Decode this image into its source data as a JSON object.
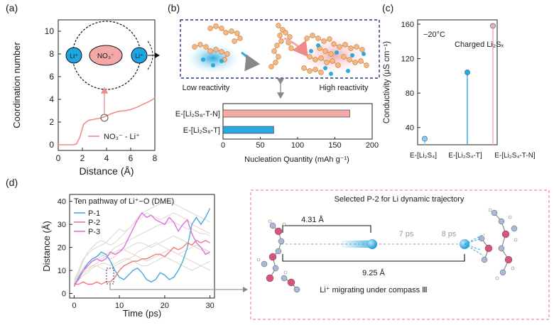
{
  "panels": {
    "a": "(a)",
    "b": "(b)",
    "c": "(c)",
    "d": "(d)"
  },
  "colors": {
    "red": "#f08a8a",
    "pink": "#f4a8a8",
    "blue": "#2aa8e0",
    "lightblue": "#8fc8ec",
    "magenta": "#e070e0",
    "grey": "#d8d2c8"
  },
  "chart_data": [
    {
      "id": "a",
      "type": "line",
      "title": "",
      "xlabel": "Distance (Å)",
      "ylabel": "Coordination number",
      "xlim": [
        0,
        8
      ],
      "ylim": [
        -0.5,
        11
      ],
      "xticks": [
        "0",
        "2",
        "4",
        "6",
        "8"
      ],
      "yticks": [
        "0",
        "2",
        "4",
        "6",
        "8",
        "10"
      ],
      "legend": "NO₃⁻ - Li⁺",
      "series": [
        {
          "name": "NO3- - Li+",
          "x": [
            0,
            1.2,
            1.5,
            1.8,
            2.1,
            2.5,
            3.0,
            3.5,
            3.9,
            4.3,
            5.0,
            5.5,
            6.0,
            6.5,
            7.0,
            7.5,
            8.0
          ],
          "y": [
            0,
            0,
            0.05,
            0.7,
            1.8,
            2.15,
            2.25,
            2.35,
            2.5,
            2.7,
            2.95,
            3.0,
            3.1,
            3.3,
            3.55,
            3.8,
            4.1
          ]
        }
      ],
      "annotations": {
        "cation_left": "Li⁺",
        "anion": "NO₃⁻",
        "cation_right": "Li⁺"
      }
    },
    {
      "id": "b",
      "type": "bar",
      "xlabel": "Nucleation Quantity (mAh g⁻¹)",
      "xlim": [
        0,
        200
      ],
      "xticks": [
        "0",
        "50",
        "100",
        "150",
        "200"
      ],
      "categories": [
        "E-[Li₂S₈-T-N]",
        "E-[Li₂S₈-T]"
      ],
      "values": [
        170,
        68
      ],
      "bar_colors": [
        "#f4a8a8",
        "#2aa8e0"
      ],
      "labels": {
        "low": "Low reactivity",
        "high": "High reactivity"
      }
    },
    {
      "id": "c",
      "type": "scatter",
      "ylabel": "Conductivity (μS cm⁻¹)",
      "ylim": [
        20,
        165
      ],
      "yticks": [
        "40",
        "80",
        "120",
        "160"
      ],
      "categories": [
        "E-[Li₂S₄]",
        "E-[Li₂S₄-T]",
        "E-[Li₂S₄-T-N]"
      ],
      "values": [
        27,
        104,
        158
      ],
      "point_colors": [
        "#8fc8ec",
        "#2aa8e0",
        "#f4a8a8"
      ],
      "temperature": "−20°C",
      "legend": "Charged Li₂Sₓ"
    },
    {
      "id": "d",
      "type": "line",
      "title": "Ten pathway of Li⁺−O (DME)",
      "xlabel": "Time (ps)",
      "ylabel": "Distance (Å)",
      "xlim": [
        -1,
        31
      ],
      "ylim": [
        -2,
        43
      ],
      "xticks": [
        "0",
        "10",
        "20",
        "30"
      ],
      "yticks": [
        "0",
        "10",
        "20",
        "30",
        "40"
      ],
      "series": [
        {
          "name": "P-1",
          "color": "#4aa8e0",
          "x": [
            0,
            1,
            2,
            3,
            4,
            5,
            6,
            7,
            8,
            9,
            10,
            11,
            12,
            13,
            14,
            15,
            16,
            17,
            18,
            19,
            20,
            21,
            22,
            23,
            24,
            25,
            26,
            27,
            28,
            29,
            30
          ],
          "y": [
            3,
            7,
            10,
            13,
            15,
            16,
            18,
            17,
            14,
            10,
            7,
            6,
            8,
            10,
            11,
            9,
            6,
            5,
            6,
            9,
            8,
            6,
            7,
            10,
            14,
            20,
            30,
            33,
            30,
            33,
            37
          ]
        },
        {
          "name": "P-2",
          "color": "#f07a7a",
          "x": [
            0,
            1,
            2,
            3,
            4,
            5,
            6,
            7,
            8,
            9,
            10,
            11,
            12,
            13,
            14,
            15,
            16,
            17,
            18,
            19,
            20,
            21,
            22,
            23,
            24,
            25,
            26,
            27,
            28,
            29,
            30
          ],
          "y": [
            4,
            4,
            5,
            4,
            4,
            5,
            4,
            5,
            5,
            7,
            10,
            12,
            13,
            14,
            14,
            15,
            15,
            16,
            17,
            17,
            16,
            18,
            20,
            19,
            20,
            22,
            21,
            23,
            22,
            23,
            22
          ]
        },
        {
          "name": "P-3",
          "color": "#e070e0",
          "x": [
            0,
            1,
            2,
            3,
            4,
            5,
            6,
            7,
            8,
            9,
            10,
            11,
            12,
            13,
            14,
            15,
            16,
            17,
            18,
            19,
            20,
            21,
            22,
            23,
            24,
            25,
            26,
            27,
            28,
            29,
            30
          ],
          "y": [
            4,
            6,
            10,
            12,
            14,
            15,
            14,
            15,
            18,
            17,
            18,
            20,
            24,
            28,
            32,
            35,
            33,
            34,
            32,
            31,
            30,
            33,
            31,
            27,
            30,
            32,
            26,
            22,
            20,
            17,
            18
          ]
        }
      ],
      "background_series": [
        {
          "y": [
            5,
            9,
            14,
            18,
            20,
            22,
            23,
            22,
            21,
            22,
            24,
            26,
            28,
            30,
            33,
            35,
            36,
            37,
            38,
            39,
            40,
            40,
            39,
            38,
            37,
            36,
            35,
            34,
            33,
            32,
            31
          ]
        },
        {
          "y": [
            6,
            10,
            15,
            17,
            19,
            20,
            21,
            22,
            24,
            26,
            28,
            27,
            28,
            30,
            32,
            33,
            35,
            34,
            33,
            32,
            33,
            34,
            35,
            34,
            33,
            32,
            30,
            29,
            28,
            27,
            26
          ]
        },
        {
          "y": [
            5,
            7,
            9,
            12,
            14,
            15,
            16,
            17,
            18,
            20,
            21,
            22,
            23,
            24,
            25,
            26,
            27,
            28,
            29,
            30,
            30,
            31,
            31,
            30,
            29,
            28,
            28,
            27,
            26,
            26,
            25
          ]
        },
        {
          "y": [
            4,
            8,
            11,
            13,
            14,
            16,
            17,
            16,
            15,
            16,
            18,
            19,
            20,
            21,
            22,
            22,
            21,
            20,
            21,
            22,
            23,
            24,
            25,
            24,
            23,
            22,
            21,
            20,
            19,
            18,
            17
          ]
        },
        {
          "y": [
            3,
            6,
            8,
            9,
            11,
            12,
            13,
            13,
            12,
            13,
            14,
            15,
            15,
            16,
            18,
            19,
            20,
            21,
            22,
            21,
            20,
            19,
            18,
            17,
            18,
            19,
            20,
            21,
            20,
            19,
            18
          ]
        },
        {
          "y": [
            4,
            7,
            9,
            10,
            12,
            13,
            15,
            16,
            17,
            18,
            19,
            19,
            18,
            17,
            16,
            15,
            14,
            15,
            16,
            17,
            18,
            19,
            18,
            17,
            16,
            15,
            14,
            13,
            12,
            13,
            14
          ]
        },
        {
          "y": [
            5,
            8,
            10,
            11,
            12,
            12,
            11,
            10,
            11,
            12,
            13,
            14,
            15,
            14,
            13,
            12,
            12,
            13,
            14,
            15,
            16,
            15,
            14,
            13,
            12,
            11,
            10,
            11,
            12,
            11,
            10
          ]
        }
      ],
      "trajectory": {
        "title": "Selected P-2 for Li dynamic trajectory",
        "dist1": "4.31 Å",
        "dist2": "9.25 Å",
        "t1": "7 ps",
        "t2": "8 ps",
        "caption": "Li⁺ migrating under compass Ⅲ"
      }
    }
  ]
}
